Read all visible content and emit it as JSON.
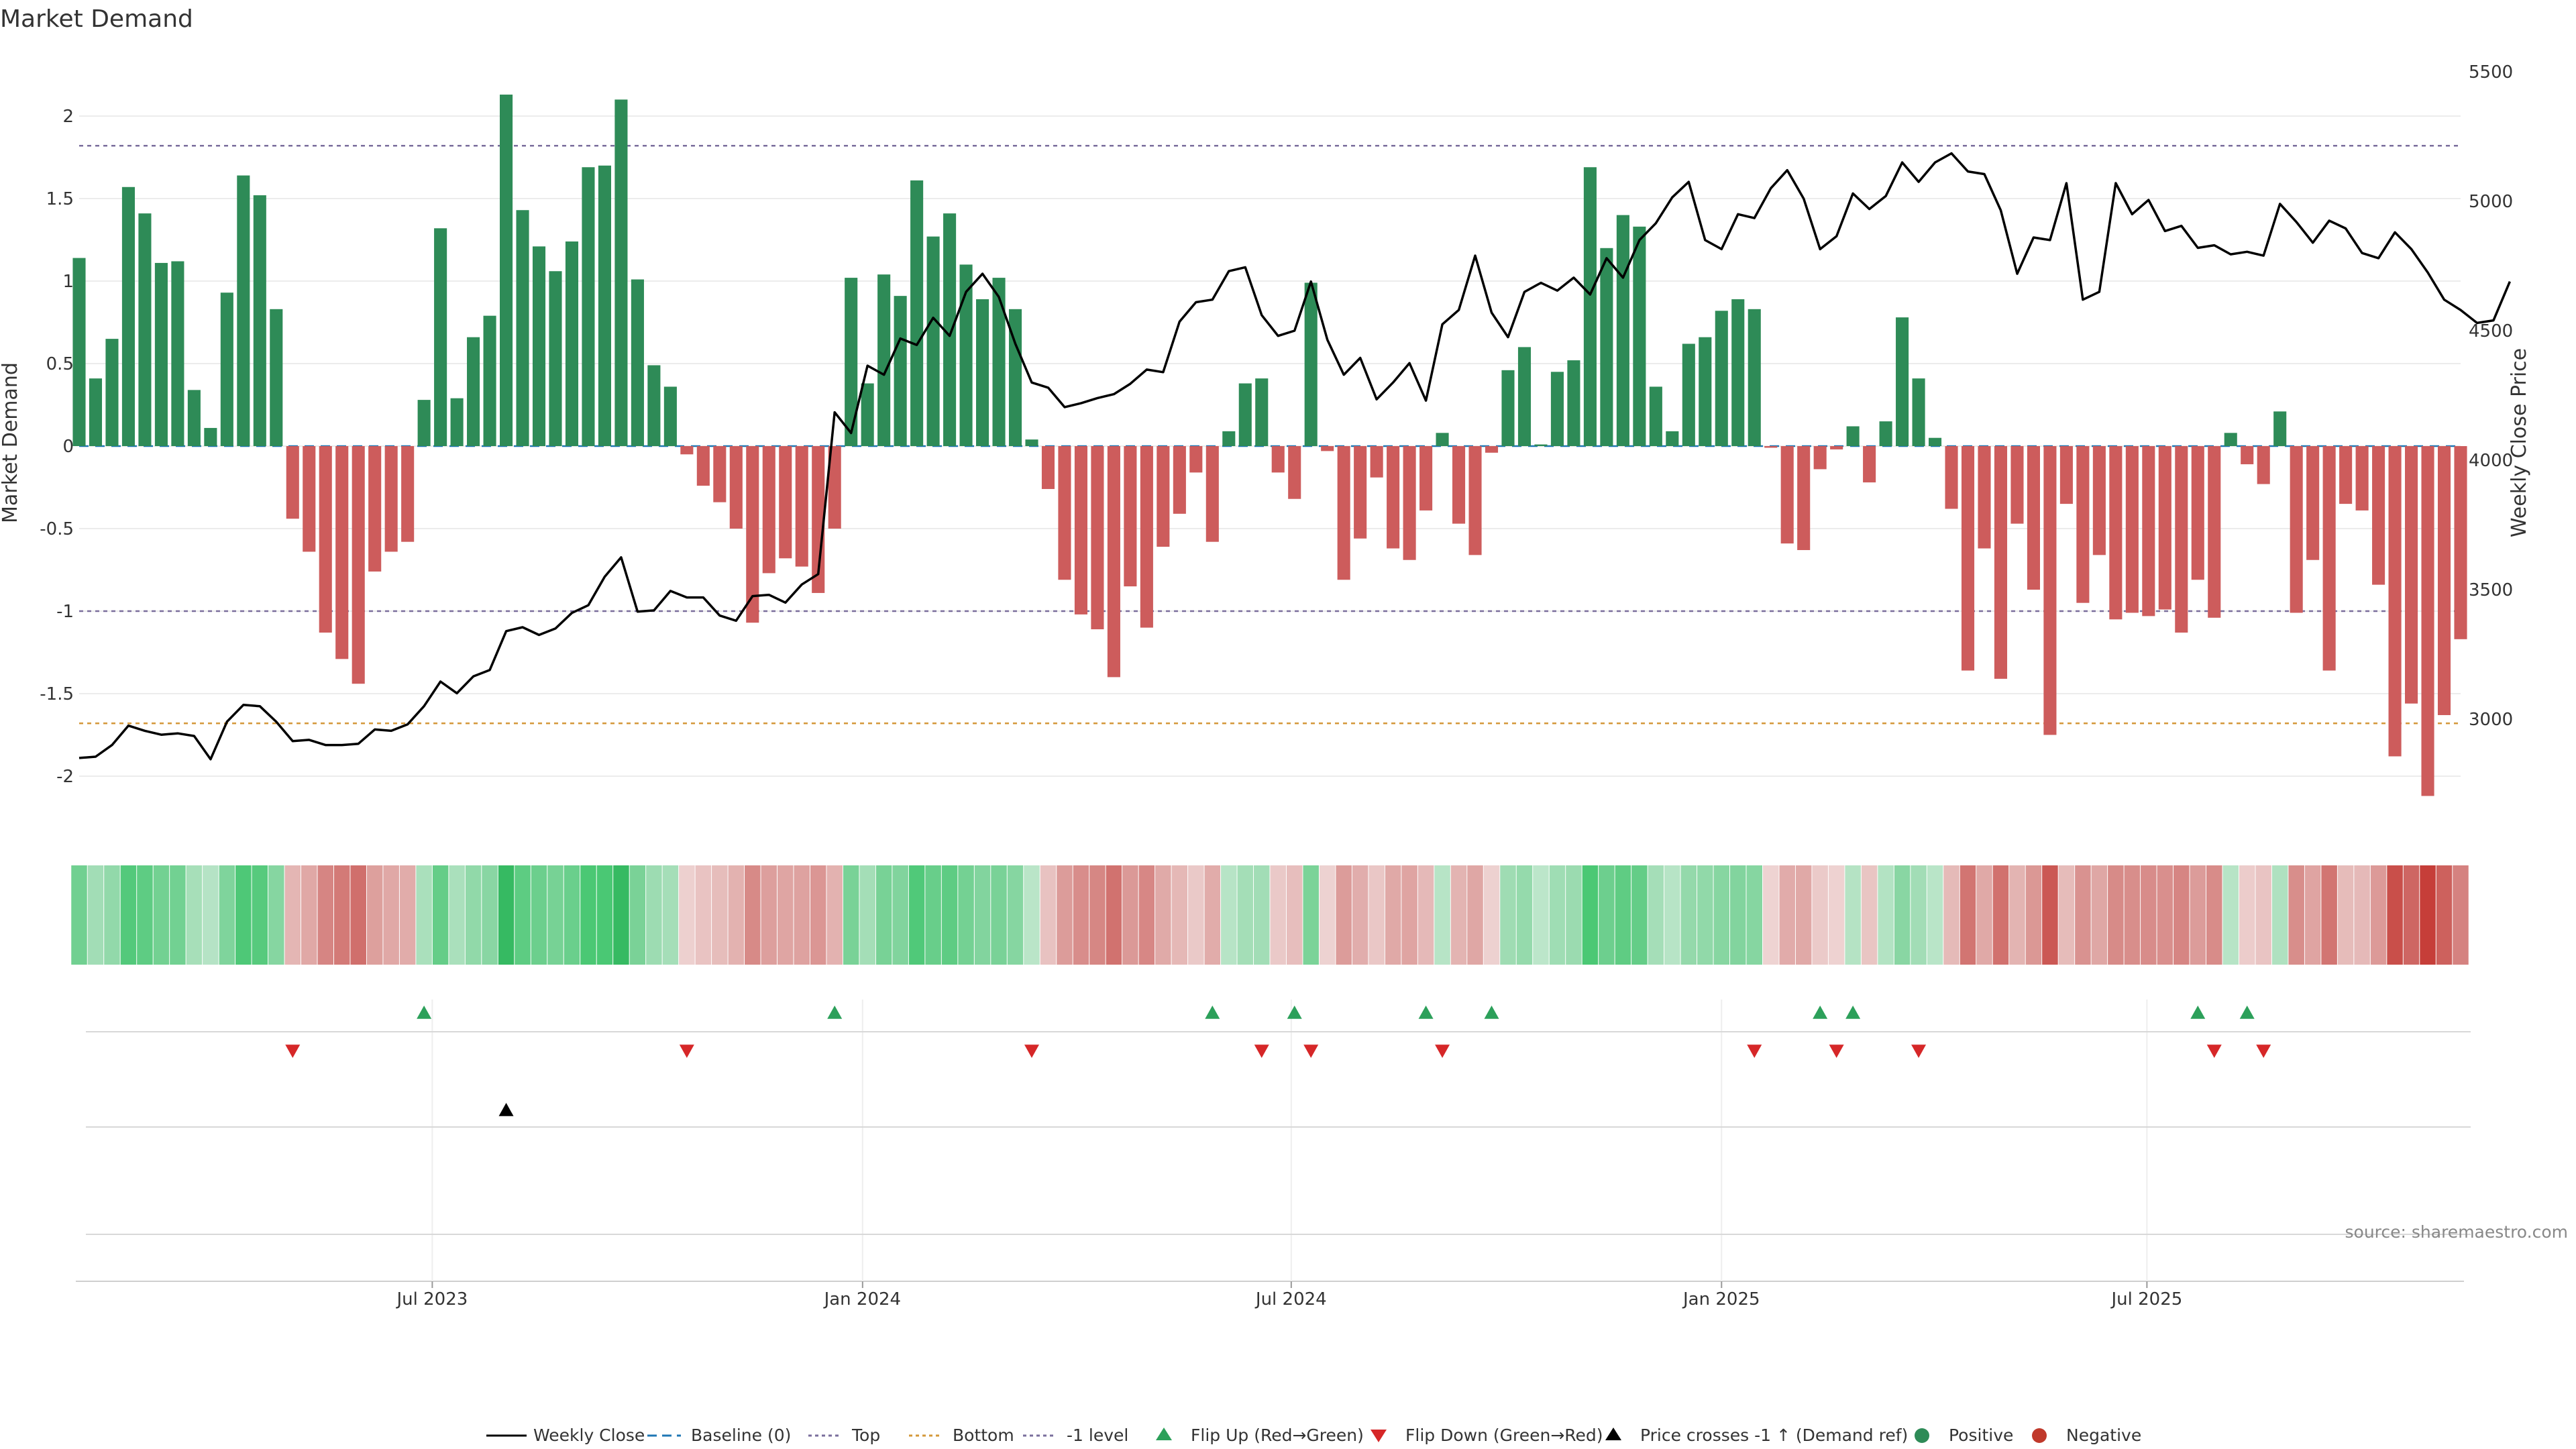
{
  "chart_data": {
    "type": "bar",
    "title": "Market Demand",
    "ylabel": "Market Demand",
    "y2label": "Weekly Close Price",
    "ylim": [
      -2.35,
      2.4
    ],
    "y2lim": [
      2590,
      5610
    ],
    "yticks": [
      "2",
      "1.5",
      "1",
      "0.5",
      "0",
      "-0.5",
      "-1",
      "-1.5",
      "-2"
    ],
    "y2ticks": [
      "5500",
      "5000",
      "4500",
      "4000",
      "3500",
      "3000"
    ],
    "xticks": [
      {
        "label": "Jul 2023",
        "week": 21.5
      },
      {
        "label": "Jan 2024",
        "week": 47.7
      },
      {
        "label": "Jul 2024",
        "week": 73.8
      },
      {
        "label": "Jan 2025",
        "week": 100
      },
      {
        "label": "Jul 2025",
        "week": 125.9
      }
    ],
    "reference_lines": {
      "top": 1.82,
      "bottom": -1.68,
      "minus_one": -1
    },
    "demand": [
      1.14,
      0.41,
      0.65,
      1.57,
      1.41,
      1.11,
      1.12,
      0.34,
      0.11,
      0.93,
      1.64,
      1.52,
      0.83,
      -0.44,
      -0.64,
      -1.13,
      -1.29,
      -1.44,
      -0.76,
      -0.64,
      -0.58,
      0.28,
      1.32,
      0.29,
      0.66,
      0.79,
      2.13,
      1.43,
      1.21,
      1.06,
      1.24,
      1.69,
      1.7,
      2.1,
      1.01,
      0.49,
      0.36,
      -0.05,
      -0.24,
      -0.34,
      -0.5,
      -1.07,
      -0.77,
      -0.68,
      -0.73,
      -0.89,
      -0.5,
      1.02,
      0.38,
      1.04,
      0.91,
      1.61,
      1.27,
      1.41,
      1.1,
      0.89,
      1.02,
      0.83,
      0.04,
      -0.26,
      -0.81,
      -1.02,
      -1.11,
      -1.4,
      -0.85,
      -1.1,
      -0.61,
      -0.41,
      -0.16,
      -0.58,
      0.09,
      0.38,
      0.41,
      -0.16,
      -0.32,
      0.99,
      -0.03,
      -0.81,
      -0.56,
      -0.19,
      -0.62,
      -0.69,
      -0.39,
      0.08,
      -0.47,
      -0.66,
      -0.04,
      0.46,
      0.6,
      0.01,
      0.45,
      0.52,
      1.69,
      1.2,
      1.4,
      1.33,
      0.36,
      0.09,
      0.62,
      0.66,
      0.82,
      0.89,
      0.83,
      -0.01,
      -0.59,
      -0.63,
      -0.14,
      -0.02,
      0.12,
      -0.22,
      0.15,
      0.78,
      0.41,
      0.05,
      -0.38,
      -1.36,
      -0.62,
      -1.41,
      -0.47,
      -0.87,
      -1.75,
      -0.35,
      -0.95,
      -0.66,
      -1.05,
      -1.01,
      -1.03,
      -0.99,
      -1.13,
      -0.81,
      -1.04,
      0.08,
      -0.11,
      -0.23,
      0.21,
      -1.01,
      -0.69,
      -1.36,
      -0.35,
      -0.39,
      -0.84,
      -1.88,
      -1.56,
      -2.12,
      -1.63,
      -1.17
    ],
    "close": [
      2850,
      2855,
      2900,
      2975,
      2955,
      2940,
      2945,
      2935,
      2845,
      2990,
      3055,
      3050,
      2990,
      2915,
      2920,
      2900,
      2900,
      2905,
      2960,
      2955,
      2980,
      3050,
      3145,
      3100,
      3165,
      3190,
      3340,
      3355,
      3325,
      3350,
      3410,
      3440,
      3550,
      3625,
      3415,
      3420,
      3495,
      3470,
      3470,
      3400,
      3380,
      3475,
      3480,
      3450,
      3520,
      3560,
      4185,
      4105,
      4365,
      4330,
      4470,
      4445,
      4550,
      4480,
      4650,
      4720,
      4630,
      4450,
      4300,
      4280,
      4205,
      4220,
      4240,
      4255,
      4295,
      4350,
      4340,
      4535,
      4610,
      4620,
      4730,
      4745,
      4560,
      4480,
      4500,
      4690,
      4465,
      4330,
      4395,
      4235,
      4300,
      4375,
      4230,
      4525,
      4580,
      4790,
      4570,
      4475,
      4650,
      4685,
      4655,
      4705,
      4640,
      4780,
      4705,
      4850,
      4915,
      5015,
      5075,
      4850,
      4815,
      4950,
      4935,
      5050,
      5120,
      5010,
      4815,
      4865,
      5030,
      4970,
      5020,
      5150,
      5075,
      5150,
      5185,
      5115,
      5105,
      4965,
      4720,
      4860,
      4850,
      5070,
      4620,
      4650,
      5070,
      4950,
      5005,
      4885,
      4905,
      4820,
      4830,
      4795,
      4805,
      4790,
      4990,
      4920,
      4840,
      4925,
      4895,
      4800,
      4780,
      4880,
      4815,
      4725,
      4620,
      4580,
      4530,
      4540,
      4690
    ],
    "flip_up_weeks": [
      21,
      46,
      69,
      74,
      82,
      86,
      106,
      108,
      129,
      132
    ],
    "flip_down_weeks": [
      13,
      37,
      58,
      72,
      75,
      83,
      102,
      107,
      112,
      130,
      133
    ],
    "price_cross_weeks": [
      26
    ],
    "legend": [
      {
        "label": "Weekly Close",
        "kind": "line",
        "color": "#000000"
      },
      {
        "label": "Baseline (0)",
        "kind": "dashed",
        "color": "#1f77b4"
      },
      {
        "label": "Top",
        "kind": "dotted",
        "color": "#7a6e9c"
      },
      {
        "label": "Bottom",
        "kind": "dotted",
        "color": "#d4983a"
      },
      {
        "label": "-1 level",
        "kind": "dotted",
        "color": "#7a6e9c"
      },
      {
        "label": "Flip Up (Red→Green)",
        "kind": "tri-up",
        "color": "#2ca05a"
      },
      {
        "label": "Flip Down (Green→Red)",
        "kind": "tri-down",
        "color": "#d62728"
      },
      {
        "label": "Price crosses -1 ↑ (Demand ref)",
        "kind": "tri-up",
        "color": "#000000"
      },
      {
        "label": "Positive",
        "kind": "dot",
        "color": "#2e8b57"
      },
      {
        "label": "Negative",
        "kind": "dot",
        "color": "#c0392b"
      }
    ],
    "colors": {
      "positive": "#2e8b57",
      "negative": "#cd5c5c",
      "price": "#000000",
      "grid": "#e6e6e6"
    }
  },
  "source": "source: sharemaestro.com"
}
